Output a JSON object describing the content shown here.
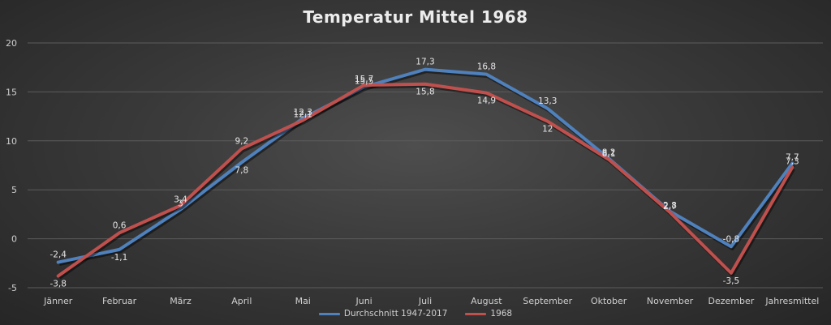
{
  "chart_data": {
    "type": "line",
    "title": "Temperatur Mittel 1968",
    "xlabel": "",
    "ylabel": "",
    "categories": [
      "Jänner",
      "Februar",
      "März",
      "April",
      "Mai",
      "Juni",
      "Juli",
      "August",
      "September",
      "Oktober",
      "November",
      "Dezember",
      "Jahresmittel"
    ],
    "ylim": [
      -5,
      20
    ],
    "yticks": [
      -5,
      0,
      5,
      10,
      15,
      20
    ],
    "grid": true,
    "legend_position": "bottom",
    "series": [
      {
        "name": "Durchschnitt 1947-2017",
        "color": "#4f81bd",
        "values": [
          -2.4,
          -1.1,
          3,
          7.8,
          12.3,
          15.5,
          17.3,
          16.8,
          13.3,
          8.2,
          2.8,
          -0.8,
          7.7
        ],
        "labels": [
          "-2,4",
          "-1,1",
          "3",
          "7,8",
          "12,3",
          "15,5",
          "17,3",
          "16,8",
          "13,3",
          "8,2",
          "2,8",
          "-0,8",
          "7,7"
        ]
      },
      {
        "name": "1968",
        "color": "#c0504d",
        "values": [
          -3.8,
          0.6,
          3.4,
          9.2,
          12.1,
          15.7,
          15.8,
          14.9,
          12,
          8.1,
          2.7,
          -3.5,
          7.3
        ],
        "labels": [
          "-3,8",
          "0,6",
          "3,4",
          "9,2",
          "12,1",
          "15,7",
          "15,8",
          "14,9",
          "12",
          "8,1",
          "2,7",
          "-3,5",
          "7,3"
        ]
      }
    ]
  }
}
